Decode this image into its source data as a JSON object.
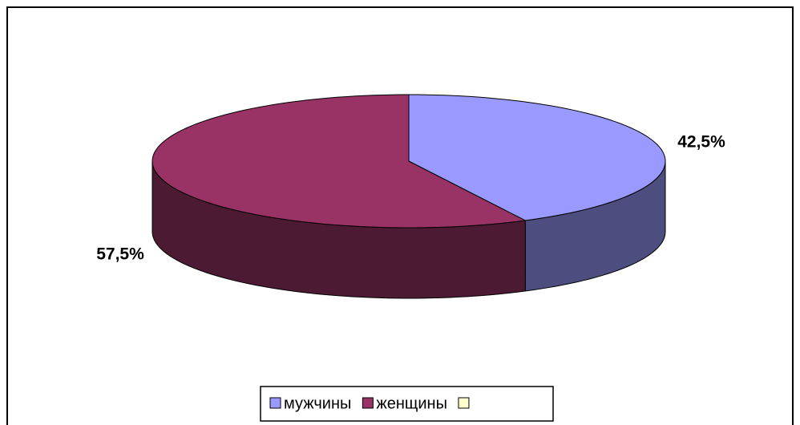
{
  "chart_data": {
    "type": "pie3d",
    "categories": [
      "мужчины",
      "женщины",
      null
    ],
    "values": [
      42.5,
      57.5,
      null
    ],
    "value_labels": [
      "42,5%",
      "57,5%",
      null
    ],
    "colors": [
      "#9999ff",
      "#993366",
      "#ffffcc"
    ],
    "legend": "bottom"
  }
}
